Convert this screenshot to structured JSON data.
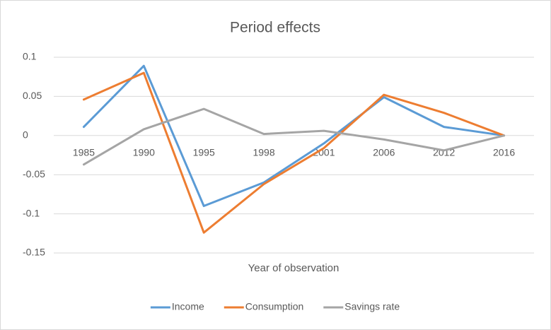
{
  "chart_data": {
    "type": "line",
    "title": "Period effects",
    "x_label": "Year of observation",
    "categories": [
      "1985",
      "1990",
      "1995",
      "1998",
      "2001",
      "2006",
      "2012",
      "2016"
    ],
    "series": [
      {
        "name": "Income",
        "color": "#5b9bd5",
        "values": [
          0.011,
          0.089,
          -0.09,
          -0.06,
          -0.01,
          0.049,
          0.011,
          0
        ]
      },
      {
        "name": "Consumption",
        "color": "#ed7d31",
        "values": [
          0.046,
          0.08,
          -0.124,
          -0.062,
          -0.016,
          0.052,
          0.029,
          0
        ]
      },
      {
        "name": "Savings rate",
        "color": "#a5a5a5",
        "values": [
          -0.037,
          0.008,
          0.034,
          0.002,
          0.006,
          -0.005,
          -0.019,
          0
        ]
      }
    ],
    "ylim": [
      -0.15,
      0.1
    ],
    "yticks": [
      -0.15,
      -0.1,
      -0.05,
      0,
      0.05,
      0.1
    ],
    "grid": true,
    "legend": "bottom"
  }
}
